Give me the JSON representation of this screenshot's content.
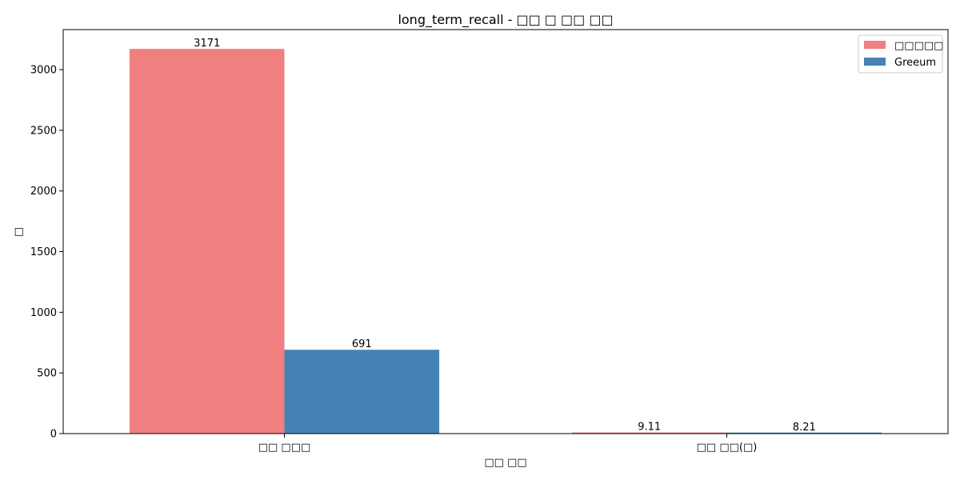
{
  "chart_data": {
    "type": "bar",
    "title": "long_term_recall - □□ □ □□ □□",
    "xlabel": "□□ □□",
    "ylabel": "□",
    "categories": [
      "□□ □□□",
      "□□ □□(□)"
    ],
    "series": [
      {
        "name": "□□□□□",
        "color": "#f08080",
        "values": [
          3171,
          9.11
        ],
        "labels": [
          "3171",
          "9.11"
        ]
      },
      {
        "name": "Greeum",
        "color": "#4682b4",
        "values": [
          691,
          8.21
        ],
        "labels": [
          "691",
          "8.21"
        ]
      }
    ],
    "ylim": [
      0,
      3330
    ],
    "yticks": [
      0,
      500,
      1000,
      1500,
      2000,
      2500,
      3000
    ],
    "grid": false,
    "legend_position": "top-right"
  }
}
